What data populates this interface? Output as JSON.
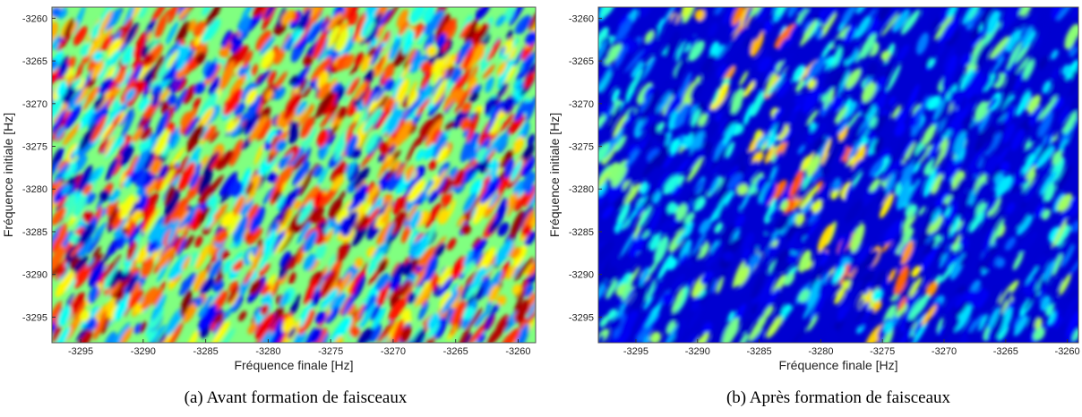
{
  "chart_data": [
    {
      "type": "heatmap",
      "xlabel": "Fréquence finale [Hz]",
      "ylabel": "Fréquence initiale [Hz]",
      "xlim": [
        -3297.3,
        -3258.6
      ],
      "ylim": [
        -3298,
        -3258.7
      ],
      "xticks": [
        -3295,
        -3290,
        -3285,
        -3280,
        -3275,
        -3270,
        -3265,
        -3260
      ],
      "yticks": [
        -3260,
        -3265,
        -3270,
        -3275,
        -3280,
        -3285,
        -3290,
        -3295
      ],
      "caption": "(a) Avant formation de faisceaux"
    },
    {
      "type": "heatmap",
      "xlabel": "Fréquence finale [Hz]",
      "ylabel": "Fréquence initiale [Hz]",
      "xlim": [
        -3298.05,
        -3259.1
      ],
      "ylim": [
        -3298,
        -3258.7
      ],
      "xticks": [
        -3295,
        -3290,
        -3285,
        -3280,
        -3275,
        -3270,
        -3265,
        -3260
      ],
      "yticks": [
        -3260,
        -3265,
        -3270,
        -3275,
        -3280,
        -3285,
        -3290,
        -3295
      ],
      "caption": "(b) Après formation de faisceaux"
    }
  ]
}
